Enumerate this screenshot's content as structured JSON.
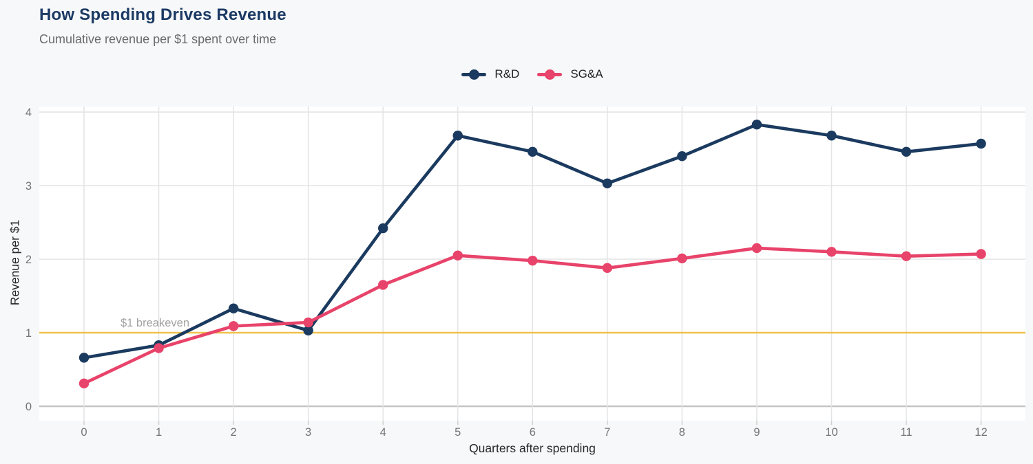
{
  "header": {
    "title": "How Spending Drives Revenue",
    "subtitle": "Cumulative revenue per $1 spent over time"
  },
  "colors": {
    "background": "#f7f8fa",
    "panel": "#ffffff",
    "grid": "#e4e4e4",
    "zero_line": "#c4c4c4",
    "tick": "#cfcfcf",
    "title": "#1b3a64",
    "subtitle": "#6a6a6a",
    "tick_label": "#757575",
    "axis_title": "#262626",
    "annotation": "#a3a3a3"
  },
  "chart_data": {
    "type": "line",
    "title": "How Spending Drives Revenue",
    "subtitle": "Cumulative revenue per $1 spent over time",
    "x": [
      0,
      1,
      2,
      3,
      4,
      5,
      6,
      7,
      8,
      9,
      10,
      11,
      12
    ],
    "series": [
      {
        "name": "R&D",
        "color": "#1b3a5f",
        "values": [
          0.66,
          0.83,
          1.33,
          1.03,
          2.42,
          3.68,
          3.46,
          3.03,
          3.4,
          3.83,
          3.68,
          3.46,
          3.57
        ]
      },
      {
        "name": "SG&A",
        "color": "#e8436a",
        "values": [
          0.31,
          0.79,
          1.09,
          1.14,
          1.65,
          2.05,
          1.98,
          1.88,
          2.01,
          2.15,
          2.1,
          2.04,
          2.07
        ]
      }
    ],
    "xlabel": "Quarters after spending",
    "ylabel": "Revenue per $1",
    "ylim": [
      0,
      4
    ],
    "yticks": [
      0,
      1,
      2,
      3,
      4
    ],
    "grid": true,
    "legend_position": "top-center",
    "reference_line": {
      "y": 1,
      "label": "$1 breakeven",
      "color": "#f0c24b"
    }
  }
}
